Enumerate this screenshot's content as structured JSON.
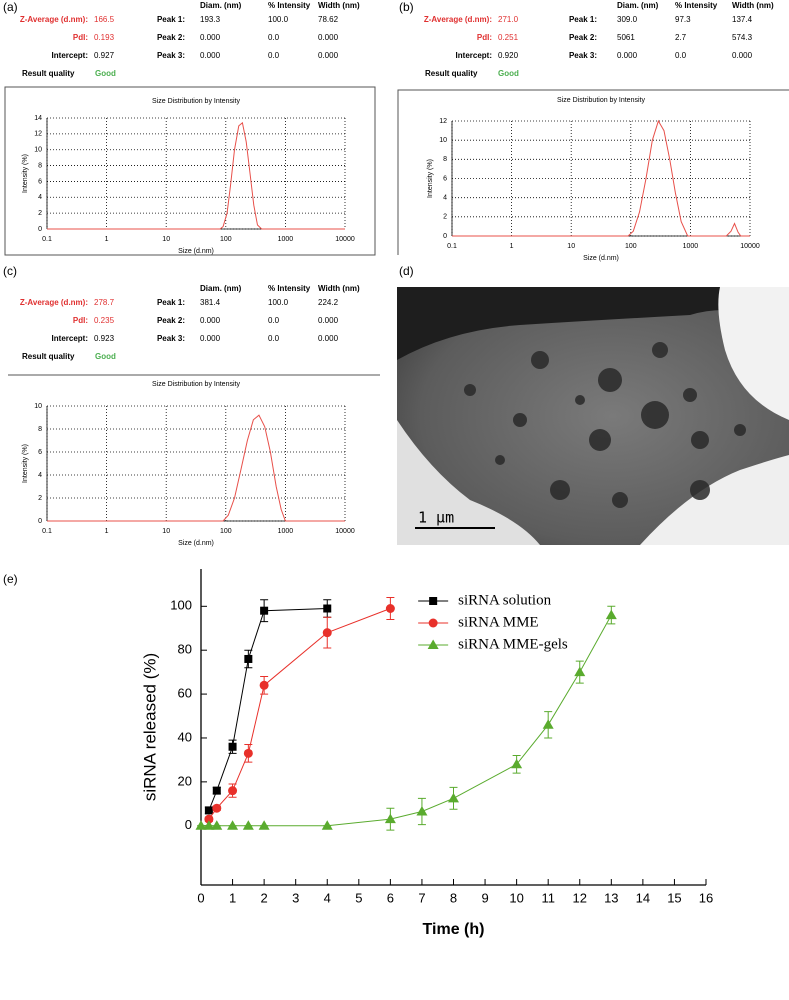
{
  "panel_labels": [
    "(a)",
    "(b)",
    "(c)",
    "(d)",
    "(e)"
  ],
  "reports": [
    {
      "summary": [
        {
          "label": "Z-Average (d.nm):",
          "value": "166.5"
        },
        {
          "label": "PdI:",
          "value": "0.193"
        },
        {
          "label": "Intercept:",
          "value": "0.927"
        },
        {
          "label": "Result quality",
          "value": "Good"
        }
      ],
      "peak_header": [
        "Diam. (nm)",
        "% Intensity",
        "Width (nm)"
      ],
      "peaks": [
        {
          "label": "Peak 1:",
          "values": [
            "193.3",
            "100.0",
            "78.62"
          ]
        },
        {
          "label": "Peak 2:",
          "values": [
            "0.000",
            "0.0",
            "0.000"
          ]
        },
        {
          "label": "Peak 3:",
          "values": [
            "0.000",
            "0.0",
            "0.000"
          ]
        }
      ]
    },
    {
      "summary": [
        {
          "label": "Z-Average (d.nm):",
          "value": "271.0"
        },
        {
          "label": "PdI:",
          "value": "0.251"
        },
        {
          "label": "Intercept:",
          "value": "0.920"
        },
        {
          "label": "Result quality",
          "value": "Good"
        }
      ],
      "peak_header": [
        "Diam. (nm)",
        "% Intensity",
        "Width (nm)"
      ],
      "peaks": [
        {
          "label": "Peak 1:",
          "values": [
            "309.0",
            "97.3",
            "137.4"
          ]
        },
        {
          "label": "Peak 2:",
          "values": [
            "5061",
            "2.7",
            "574.3"
          ]
        },
        {
          "label": "Peak 3:",
          "values": [
            "0.000",
            "0.0",
            "0.000"
          ]
        }
      ]
    },
    {
      "summary": [
        {
          "label": "Z-Average (d.nm):",
          "value": "278.7"
        },
        {
          "label": "PdI:",
          "value": "0.235"
        },
        {
          "label": "Intercept:",
          "value": "0.923"
        },
        {
          "label": "Result quality",
          "value": "Good"
        }
      ],
      "peak_header": [
        "Diam. (nm)",
        "% Intensity",
        "Width (nm)"
      ],
      "peaks": [
        {
          "label": "Peak 1:",
          "values": [
            "381.4",
            "100.0",
            "224.2"
          ]
        },
        {
          "label": "Peak 2:",
          "values": [
            "0.000",
            "0.0",
            "0.000"
          ]
        },
        {
          "label": "Peak 3:",
          "values": [
            "0.000",
            "0.0",
            "0.000"
          ]
        }
      ]
    }
  ],
  "tem": {
    "scale_bar": "1 μm"
  },
  "chart_data": [
    {
      "type": "line",
      "title": "Size Distribution by Intensity",
      "x_label": "Size (d.nm)",
      "y_label": "Intensity (%)",
      "xscale": "log",
      "grid": true,
      "color": "#e8504a",
      "xlim": [
        0.1,
        10000
      ],
      "xticks": [
        0.1,
        1,
        10,
        100,
        1000,
        10000
      ],
      "ylim": [
        0,
        14
      ],
      "yticks": [
        0,
        2,
        4,
        6,
        8,
        10,
        12,
        14
      ],
      "x": [
        0.1,
        80,
        90,
        105,
        120,
        140,
        165,
        190,
        220,
        255,
        295,
        340,
        400,
        10000
      ],
      "values": [
        0,
        0,
        0.3,
        2,
        5.5,
        10,
        13,
        13.4,
        11,
        7,
        3,
        0.5,
        0,
        0
      ]
    },
    {
      "type": "line",
      "title": "Size Distribution by Intensity",
      "x_label": "Size (d.nm)",
      "y_label": "Intensity (%)",
      "xscale": "log",
      "grid": true,
      "color": "#e8504a",
      "xlim": [
        0.1,
        10000
      ],
      "xticks": [
        0.1,
        1,
        10,
        100,
        1000,
        10000
      ],
      "ylim": [
        0,
        12
      ],
      "yticks": [
        0,
        2,
        4,
        6,
        8,
        10,
        12
      ],
      "x": [
        0.1,
        90,
        110,
        140,
        180,
        230,
        290,
        360,
        450,
        560,
        700,
        900,
        4000,
        4800,
        5500,
        6300,
        7000,
        10000
      ],
      "values": [
        0,
        0,
        0.5,
        2.5,
        6,
        10,
        12,
        11,
        8,
        4.5,
        1.5,
        0,
        0,
        0.5,
        1.3,
        0.4,
        0,
        0
      ]
    },
    {
      "type": "line",
      "title": "Size Distribution by Intensity",
      "x_label": "Size (d.nm)",
      "y_label": "Intensity (%)",
      "xscale": "log",
      "grid": true,
      "color": "#e8504a",
      "xlim": [
        0.1,
        10000
      ],
      "xticks": [
        0.1,
        1,
        10,
        100,
        1000,
        10000
      ],
      "ylim": [
        0,
        10
      ],
      "yticks": [
        0,
        2,
        4,
        6,
        8,
        10
      ],
      "x": [
        0.1,
        90,
        110,
        140,
        180,
        230,
        290,
        360,
        450,
        560,
        700,
        850,
        1000,
        10000
      ],
      "values": [
        0,
        0,
        0.5,
        2,
        4.5,
        7,
        8.8,
        9.2,
        8.2,
        6,
        3,
        1,
        0,
        0
      ]
    },
    {
      "type": "line",
      "x_label": "Time (h)",
      "y_label": "siRNA released (%)",
      "legend": "upper center",
      "grid": false,
      "xlim": [
        0,
        16
      ],
      "xticks": [
        0,
        1,
        2,
        3,
        4,
        5,
        6,
        7,
        8,
        9,
        10,
        11,
        12,
        13,
        14,
        15,
        16
      ],
      "ylim": [
        -27,
        117
      ],
      "yticks": [
        0,
        20,
        40,
        60,
        80,
        100
      ],
      "series": [
        {
          "name": "siRNA solution",
          "color": "#000000",
          "marker": "square",
          "x": [
            0.25,
            0.5,
            1,
            1.5,
            2,
            4
          ],
          "values": [
            7,
            16,
            36,
            76,
            98,
            99
          ],
          "errors": [
            1.5,
            1.5,
            3,
            4,
            5,
            4
          ]
        },
        {
          "name": "siRNA MME",
          "color": "#e8302a",
          "marker": "circle",
          "x": [
            0.25,
            0.5,
            1,
            1.5,
            2,
            4,
            6
          ],
          "values": [
            3,
            8,
            16,
            33,
            64,
            88,
            99
          ],
          "errors": [
            1,
            1,
            3,
            4,
            4,
            7,
            5
          ]
        },
        {
          "name": "siRNA MME-gels",
          "color": "#5aab2e",
          "marker": "triangle",
          "x": [
            0,
            0.25,
            0.5,
            1,
            1.5,
            2,
            4,
            6,
            7,
            8,
            10,
            11,
            12,
            13
          ],
          "values": [
            0,
            0,
            0,
            0,
            0,
            0,
            0,
            3,
            6.5,
            12.5,
            28,
            46,
            70,
            96
          ],
          "errors": [
            0,
            0,
            0,
            0,
            0,
            0,
            0,
            5,
            6,
            5,
            4,
            6,
            5,
            4
          ]
        }
      ]
    }
  ]
}
